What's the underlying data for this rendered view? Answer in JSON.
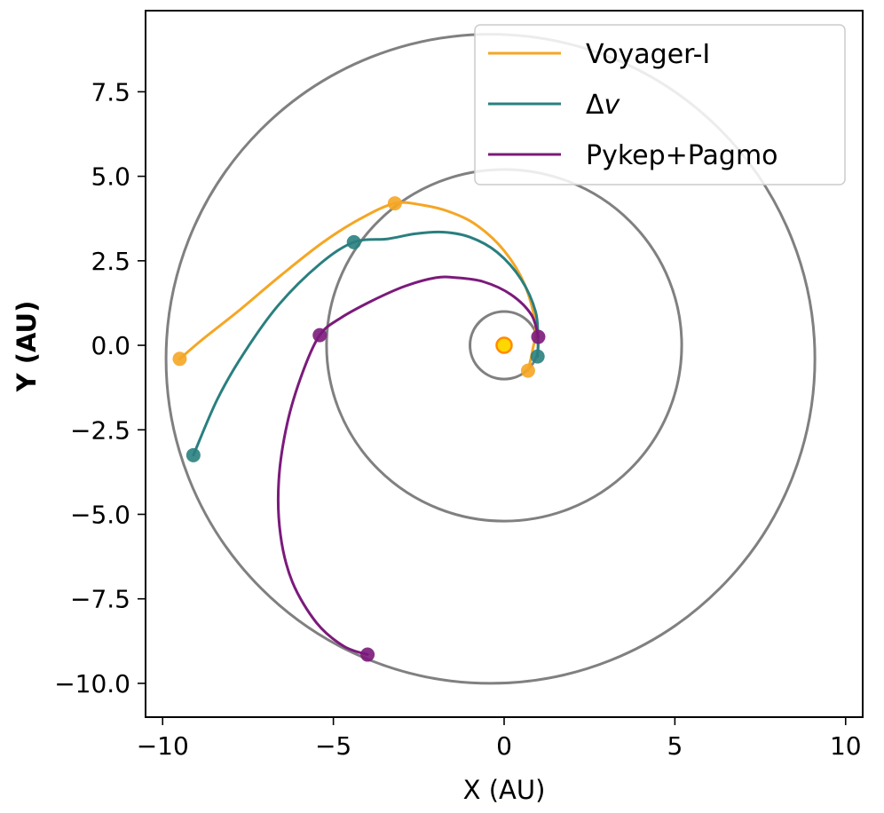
{
  "chart_data": {
    "type": "line",
    "title": "",
    "xlabel": "X (AU)",
    "ylabel": "Y (AU)",
    "xlim": [
      -10.5,
      10.5
    ],
    "ylim": [
      -11.0,
      9.9
    ],
    "xticks": [
      -10,
      -5,
      0,
      5,
      10
    ],
    "xtick_labels": [
      "−10",
      "−5",
      "0",
      "5",
      "10"
    ],
    "yticks": [
      7.5,
      5.0,
      2.5,
      0.0,
      -2.5,
      -5.0,
      -7.5,
      -10.0
    ],
    "ytick_labels": [
      "7.5",
      "5.0",
      "2.5",
      "0.0",
      "−2.5",
      "−5.0",
      "−7.5",
      "−10.0"
    ],
    "grid": false,
    "legend_position": "top-right",
    "sun": {
      "x": 0,
      "y": 0,
      "color": "#ffd700",
      "edge_color": "#ff8c00"
    },
    "orbits": [
      {
        "name": "Earth orbit",
        "cx": 0,
        "cy": 0,
        "rx": 1.0,
        "ry": 1.0,
        "color": "#808080"
      },
      {
        "name": "Jupiter orbit",
        "cx": 0,
        "cy": 0,
        "rx": 5.2,
        "ry": 5.2,
        "color": "#808080"
      },
      {
        "name": "Saturn orbit",
        "cx": -0.4,
        "cy": -0.4,
        "rx": 9.5,
        "ry": 9.6,
        "color": "#808080"
      }
    ],
    "series": [
      {
        "name": "Voyager-I",
        "label_text": "Voyager-I",
        "label_italic_suffix": "",
        "color": "#f5a623",
        "x": [
          0.7,
          0.82,
          0.92,
          0.6,
          0.0,
          -0.8,
          -1.6,
          -2.4,
          -3.2,
          -4.2,
          -5.3,
          -6.5,
          -7.8,
          -8.8,
          -9.5
        ],
        "y": [
          -0.75,
          -0.2,
          0.6,
          1.8,
          2.8,
          3.55,
          3.95,
          4.15,
          4.2,
          3.75,
          3.05,
          2.1,
          1.0,
          0.2,
          -0.4
        ],
        "markers": [
          {
            "x": 0.7,
            "y": -0.75
          },
          {
            "x": -3.2,
            "y": 4.2
          },
          {
            "x": -9.5,
            "y": -0.4
          }
        ]
      },
      {
        "name": "Delta-v",
        "label_text": "Δ",
        "label_italic_suffix": "v",
        "color": "#2a7f7f",
        "x": [
          0.98,
          0.99,
          0.92,
          0.5,
          -0.2,
          -1.0,
          -1.8,
          -2.6,
          -3.4,
          -4.4,
          -5.4,
          -6.6,
          -7.6,
          -8.4,
          -9.1
        ],
        "y": [
          -0.33,
          0.2,
          1.0,
          1.95,
          2.75,
          3.2,
          3.35,
          3.3,
          3.15,
          3.05,
          2.4,
          1.2,
          -0.2,
          -1.6,
          -3.25
        ],
        "markers": [
          {
            "x": 0.98,
            "y": -0.33
          },
          {
            "x": -4.4,
            "y": 3.05
          },
          {
            "x": -9.1,
            "y": -3.25
          }
        ]
      },
      {
        "name": "Pykep+Pagmo",
        "label_text": "Pykep+Pagmo",
        "label_italic_suffix": "",
        "color": "#7b1a7b",
        "x": [
          1.0,
          0.8,
          0.2,
          -0.6,
          -1.4,
          -2.0,
          -2.9,
          -3.9,
          -4.8,
          -5.4,
          -5.9,
          -6.35,
          -6.6,
          -6.55,
          -6.2,
          -5.5,
          -4.7,
          -4.0
        ],
        "y": [
          0.25,
          0.9,
          1.5,
          1.88,
          2.0,
          2.0,
          1.75,
          1.3,
          0.8,
          0.3,
          -0.8,
          -2.3,
          -4.0,
          -5.6,
          -7.0,
          -8.2,
          -8.9,
          -9.15
        ],
        "markers": [
          {
            "x": 1.0,
            "y": 0.25
          },
          {
            "x": -5.4,
            "y": 0.3
          },
          {
            "x": -4.0,
            "y": -9.15
          }
        ]
      }
    ]
  }
}
